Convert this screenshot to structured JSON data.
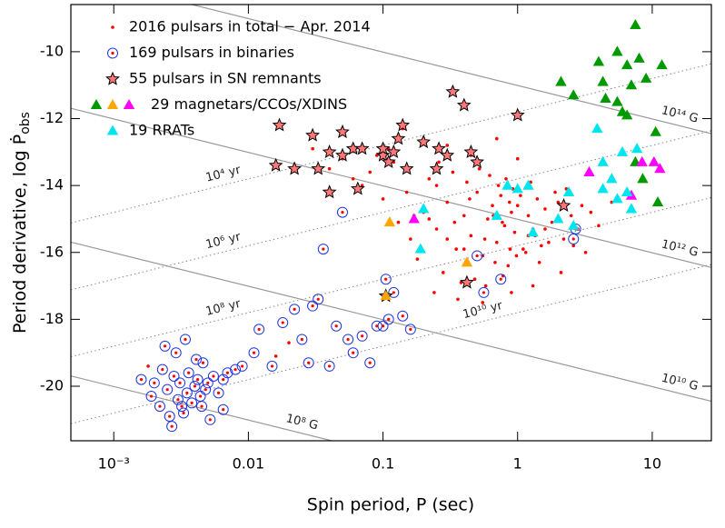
{
  "chart_data": {
    "type": "scatter",
    "x_label": "Spin period,  P (sec)",
    "y_label": "Period derivative,  log Ṗ",
    "y_label_sub": "obs",
    "x_log": true,
    "xlim": [
      0.00048,
      27.5
    ],
    "ylim": [
      -21.63,
      -8.59
    ],
    "xticks": [
      {
        "value": 0.001,
        "label": "10⁻³"
      },
      0.01,
      0.1,
      1,
      10
    ],
    "yticks": [
      -20,
      -18,
      -16,
      -14,
      -12,
      -10
    ],
    "field_lines": [
      {
        "value": 8,
        "label": "10⁸ G"
      },
      {
        "value": 10,
        "label": "10¹⁰ G"
      },
      {
        "value": 12,
        "label": "10¹² G"
      },
      {
        "value": 14,
        "label": "10¹⁴ G"
      }
    ],
    "age_lines": [
      {
        "value": 4,
        "label": "10⁴ yr"
      },
      {
        "value": 6,
        "label": "10⁶ yr"
      },
      {
        "value": 8,
        "label": "10⁸ yr"
      },
      {
        "value": 10,
        "label": "10¹⁰ yr"
      }
    ],
    "series": [
      {
        "name": "2016 pulsars in total − Apr. 2014",
        "marker": "dot",
        "color": "#ff0000",
        "x": [
          0.15,
          0.2,
          0.25,
          0.3,
          0.35,
          0.4,
          0.45,
          0.5,
          0.55,
          0.6,
          0.65,
          0.7,
          0.75,
          0.8,
          0.85,
          0.9,
          0.95,
          1.0,
          1.1,
          1.2,
          1.3,
          1.4,
          1.5,
          1.6,
          1.8,
          2.0,
          2.2,
          2.5,
          2.8,
          3.0,
          0.18,
          0.22,
          0.28,
          0.33,
          0.38,
          0.42,
          0.48,
          0.52,
          0.58,
          0.62,
          0.68,
          0.72,
          0.78,
          0.82,
          0.88,
          0.92,
          0.98,
          1.05,
          1.15,
          1.25,
          1.35,
          1.45,
          1.7,
          1.9,
          2.3,
          2.6,
          3.5,
          4.0,
          0.12,
          0.1,
          0.09,
          0.08,
          0.07,
          0.06,
          0.05,
          0.04,
          0.03,
          0.13,
          0.16,
          0.24,
          0.36,
          0.55,
          0.45,
          0.3,
          0.26,
          0.2,
          0.11,
          0.14,
          1.3,
          0.9,
          2.1,
          1.0,
          0.7,
          5.0,
          3.2,
          0.016,
          0.02,
          0.0018,
          0.25,
          0.34,
          0.44,
          0.57,
          0.66,
          0.77,
          0.87,
          1.2,
          1.6,
          0.4,
          0.3,
          0.22,
          0.17
        ],
        "values": [
          -14.2,
          -14.8,
          -15.3,
          -14.5,
          -15.9,
          -14.9,
          -15.5,
          -14.2,
          -16.1,
          -15.0,
          -14.6,
          -15.7,
          -14.3,
          -15.2,
          -16.4,
          -14.8,
          -15.4,
          -14.6,
          -15.9,
          -14.9,
          -15.3,
          -14.4,
          -15.8,
          -14.7,
          -15.1,
          -14.5,
          -15.6,
          -14.9,
          -15.3,
          -14.6,
          -16.2,
          -13.8,
          -16.6,
          -13.6,
          -16.9,
          -13.9,
          -16.8,
          -13.5,
          -17.0,
          -13.7,
          -16.3,
          -14.0,
          -16.7,
          -13.8,
          -15.9,
          -14.1,
          -16.1,
          -14.3,
          -16.0,
          -13.9,
          -15.5,
          -16.3,
          -15.7,
          -14.2,
          -14.1,
          -15.8,
          -14.8,
          -15.2,
          -13.3,
          -14.4,
          -13.1,
          -13.6,
          -14.0,
          -13.8,
          -13.2,
          -13.5,
          -12.9,
          -15.1,
          -15.6,
          -17.2,
          -17.4,
          -17.5,
          -13.1,
          -12.8,
          -13.3,
          -12.6,
          -12.9,
          -12.3,
          -17.0,
          -17.2,
          -16.6,
          -13.2,
          -12.6,
          -14.5,
          -16.0,
          -19.1,
          -18.7,
          -19.4,
          -14.0,
          -15.1,
          -14.4,
          -15.6,
          -14.9,
          -15.1,
          -14.5,
          -15.5,
          -15.3,
          -15.9,
          -15.6,
          -15.0,
          -14.9
        ]
      },
      {
        "name": "169 pulsars in binaries",
        "marker": "ring",
        "color": "#2233dd",
        "x": [
          0.0016,
          0.0019,
          0.002,
          0.0022,
          0.0023,
          0.0025,
          0.0026,
          0.0028,
          0.003,
          0.0031,
          0.0033,
          0.0035,
          0.0036,
          0.0038,
          0.004,
          0.0042,
          0.0044,
          0.0046,
          0.0048,
          0.005,
          0.0052,
          0.0055,
          0.006,
          0.0065,
          0.007,
          0.008,
          0.009,
          0.0024,
          0.0029,
          0.0034,
          0.0041,
          0.0032,
          0.0027,
          0.0045,
          0.011,
          0.012,
          0.015,
          0.018,
          0.022,
          0.025,
          0.028,
          0.03,
          0.033,
          0.036,
          0.04,
          0.045,
          0.05,
          0.055,
          0.06,
          0.07,
          0.08,
          0.09,
          0.1,
          0.105,
          0.11,
          0.12,
          0.14,
          0.16,
          0.5,
          0.56,
          2.6,
          2.7,
          0.75,
          0.0065
        ],
        "values": [
          -19.8,
          -20.3,
          -19.9,
          -20.6,
          -19.5,
          -20.1,
          -20.9,
          -19.7,
          -20.4,
          -19.9,
          -20.8,
          -20.2,
          -19.6,
          -20.5,
          -20.0,
          -19.8,
          -20.3,
          -19.3,
          -20.1,
          -19.9,
          -21.0,
          -19.7,
          -20.2,
          -19.8,
          -19.6,
          -19.5,
          -19.4,
          -18.8,
          -19.0,
          -18.6,
          -19.2,
          -20.6,
          -21.2,
          -20.6,
          -19.0,
          -18.3,
          -19.4,
          -18.1,
          -17.7,
          -18.6,
          -19.3,
          -17.6,
          -17.4,
          -15.9,
          -19.4,
          -18.2,
          -14.8,
          -18.6,
          -19.0,
          -18.5,
          -19.3,
          -18.2,
          -18.2,
          -16.8,
          -18.0,
          -17.2,
          -17.9,
          -18.3,
          -16.1,
          -17.2,
          -15.6,
          -15.3,
          -16.8,
          -20.7
        ]
      },
      {
        "name": "55 pulsars in SN remnants",
        "marker": "star",
        "color": "#000000",
        "x": [
          0.016,
          0.022,
          0.03,
          0.033,
          0.04,
          0.04,
          0.05,
          0.05,
          0.06,
          0.065,
          0.07,
          0.1,
          0.1,
          0.11,
          0.12,
          0.13,
          0.14,
          0.15,
          0.2,
          0.25,
          0.26,
          0.3,
          0.33,
          0.4,
          0.45,
          0.5,
          1.0,
          0.42,
          0.105,
          2.2,
          0.017
        ],
        "values": [
          -13.4,
          -13.5,
          -12.5,
          -13.5,
          -14.2,
          -13.0,
          -12.4,
          -13.1,
          -12.9,
          -14.1,
          -12.9,
          -13.1,
          -12.9,
          -13.3,
          -13.0,
          -12.6,
          -12.2,
          -13.5,
          -12.7,
          -13.5,
          -12.9,
          -13.1,
          -11.2,
          -11.6,
          -13.0,
          -13.3,
          -11.9,
          -16.9,
          -17.3,
          -14.6,
          -12.2
        ]
      },
      {
        "name": "29 magnetars/CCOs/XDINS",
        "marker": "triangle",
        "colors": [
          "#009900",
          "#ffa500",
          "#ff00ff"
        ],
        "x": [
          2.1,
          2.6,
          4.0,
          4.5,
          5.5,
          6.5,
          7.5,
          8.0,
          11.8,
          7.0,
          5.5,
          4.3,
          6.0,
          9.0,
          7.5,
          6.5,
          10.6,
          11.0,
          8.5,
          0.105,
          0.112,
          0.42,
          0.17,
          3.4,
          8.4,
          10.3,
          11.4,
          7.0
        ],
        "values": [
          -10.9,
          -11.3,
          -10.3,
          -11.4,
          -10.0,
          -10.4,
          -9.2,
          -10.2,
          -10.4,
          -11.0,
          -11.5,
          -10.9,
          -11.8,
          -10.8,
          -13.3,
          -11.9,
          -12.4,
          -14.5,
          -13.8,
          -17.3,
          -15.1,
          -16.3,
          -15.0,
          -13.6,
          -13.3,
          -13.3,
          -13.5,
          -14.3
        ],
        "kinds": [
          0,
          0,
          0,
          0,
          0,
          0,
          0,
          0,
          0,
          0,
          0,
          0,
          0,
          0,
          0,
          0,
          0,
          0,
          0,
          1,
          1,
          1,
          2,
          2,
          2,
          2,
          2,
          2
        ]
      },
      {
        "name": "19 RRATs",
        "marker": "triangle",
        "color": "#00e5ee",
        "x": [
          0.2,
          0.19,
          1.0,
          1.2,
          0.84,
          0.7,
          1.3,
          2.0,
          2.4,
          3.9,
          4.3,
          4.3,
          5.0,
          5.5,
          6.0,
          6.5,
          7.0,
          7.7,
          2.6
        ],
        "values": [
          -14.7,
          -15.9,
          -14.1,
          -14.0,
          -14.0,
          -14.9,
          -15.4,
          -15.0,
          -14.2,
          -12.3,
          -14.1,
          -13.3,
          -13.8,
          -14.4,
          -13.0,
          -14.2,
          -14.7,
          -12.9,
          -15.2
        ]
      }
    ]
  }
}
